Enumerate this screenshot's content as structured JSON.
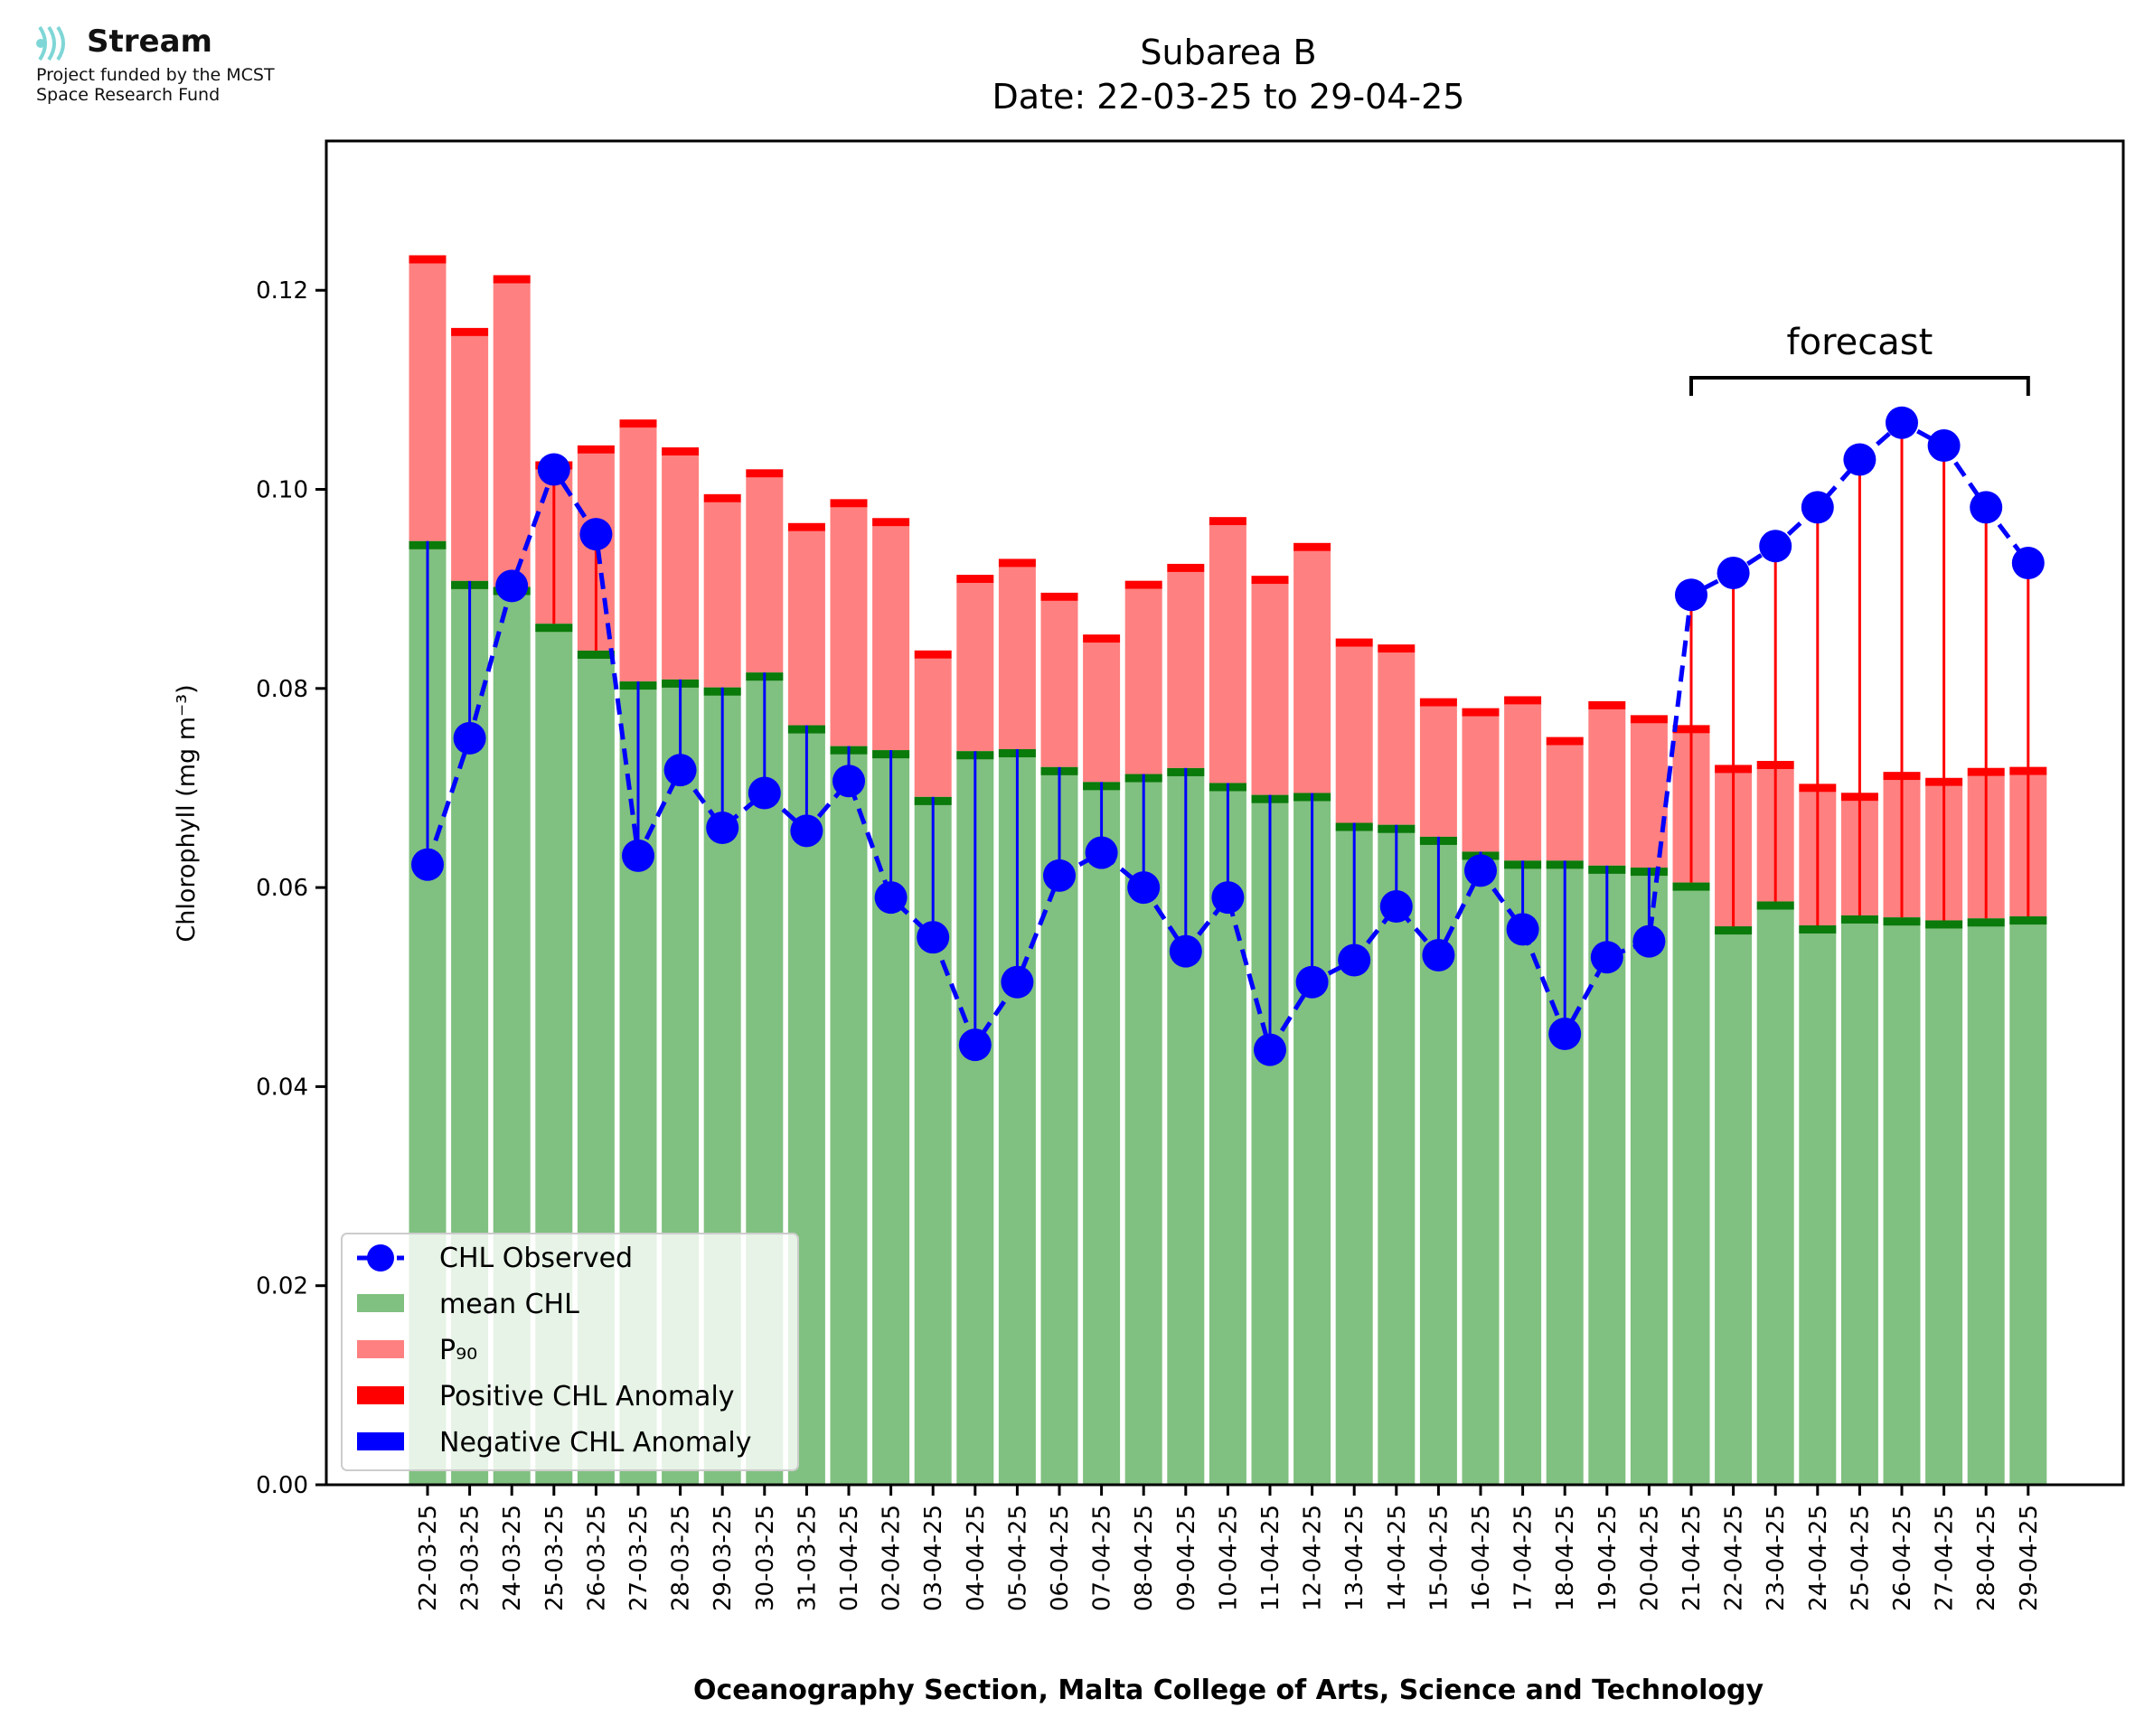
{
  "logo": {
    "name": "Stream",
    "line1": "Project funded by the MCST",
    "line2": "Space Research Fund",
    "color": "#7fd6d6"
  },
  "chart_data": {
    "type": "bar",
    "title": "Subarea B",
    "subtitle": "Date: 22-03-25 to 29-04-25",
    "xlabel": "Oceanography Section, Malta College of Arts, Science and Technology",
    "ylabel": "Chlorophyll (mg m⁻³)",
    "ylim": [
      0,
      0.135
    ],
    "yticks": [
      "0.00",
      "0.02",
      "0.04",
      "0.06",
      "0.08",
      "0.10",
      "0.12"
    ],
    "categories": [
      "22-03-25",
      "23-03-25",
      "24-03-25",
      "25-03-25",
      "26-03-25",
      "27-03-25",
      "28-03-25",
      "29-03-25",
      "30-03-25",
      "31-03-25",
      "01-04-25",
      "02-04-25",
      "03-04-25",
      "04-04-25",
      "05-04-25",
      "06-04-25",
      "07-04-25",
      "08-04-25",
      "09-04-25",
      "10-04-25",
      "11-04-25",
      "12-04-25",
      "13-04-25",
      "14-04-25",
      "15-04-25",
      "16-04-25",
      "17-04-25",
      "18-04-25",
      "19-04-25",
      "20-04-25",
      "21-04-25",
      "22-04-25",
      "23-04-25",
      "24-04-25",
      "25-04-25",
      "26-04-25",
      "27-04-25",
      "28-04-25",
      "29-04-25"
    ],
    "series": [
      {
        "name": "CHL Observed",
        "color": "#0000ff",
        "values": [
          0.0623,
          0.075,
          0.0903,
          0.102,
          0.0955,
          0.0632,
          0.0718,
          0.066,
          0.0695,
          0.0657,
          0.0707,
          0.059,
          0.055,
          0.0442,
          0.0505,
          0.0612,
          0.0635,
          0.06,
          0.0536,
          0.059,
          0.0437,
          0.0505,
          0.0527,
          0.0581,
          0.0532,
          0.0617,
          0.0558,
          0.0453,
          0.053,
          0.0546,
          0.0894,
          0.0916,
          0.0943,
          0.0982,
          0.103,
          0.1067,
          0.1044,
          0.0982,
          0.0926
        ]
      },
      {
        "name": "mean CHL",
        "color": "#80c080",
        "values": [
          0.0948,
          0.0908,
          0.0902,
          0.0865,
          0.0838,
          0.0807,
          0.0809,
          0.0801,
          0.0816,
          0.0763,
          0.0742,
          0.0738,
          0.0691,
          0.0737,
          0.0739,
          0.0721,
          0.0706,
          0.0714,
          0.072,
          0.0705,
          0.0693,
          0.0695,
          0.0665,
          0.0663,
          0.0651,
          0.0636,
          0.0627,
          0.0627,
          0.0622,
          0.062,
          0.0605,
          0.0561,
          0.0586,
          0.0562,
          0.0572,
          0.057,
          0.0567,
          0.0569,
          0.0571
        ]
      },
      {
        "name": "P₉₀",
        "color": "#ff8080",
        "values": [
          0.1227,
          0.1154,
          0.1207,
          0.102,
          0.1036,
          0.1062,
          0.1034,
          0.0987,
          0.1012,
          0.0958,
          0.0982,
          0.0963,
          0.083,
          0.0906,
          0.0922,
          0.0888,
          0.0846,
          0.09,
          0.0917,
          0.0964,
          0.0905,
          0.0938,
          0.0842,
          0.0836,
          0.0782,
          0.0772,
          0.0784,
          0.0743,
          0.0779,
          0.0765,
          0.0755,
          0.0715,
          0.0719,
          0.0696,
          0.0687,
          0.0708,
          0.0702,
          0.0712,
          0.0713
        ]
      },
      {
        "name": "Positive CHL Anomaly",
        "color": "#ff0000"
      },
      {
        "name": "Negative CHL Anomaly",
        "color": "#0000ff"
      }
    ],
    "annotation": {
      "text": "forecast",
      "from": "21-04-25",
      "to": "29-04-25"
    },
    "legend": "lower-left",
    "grid": false
  }
}
